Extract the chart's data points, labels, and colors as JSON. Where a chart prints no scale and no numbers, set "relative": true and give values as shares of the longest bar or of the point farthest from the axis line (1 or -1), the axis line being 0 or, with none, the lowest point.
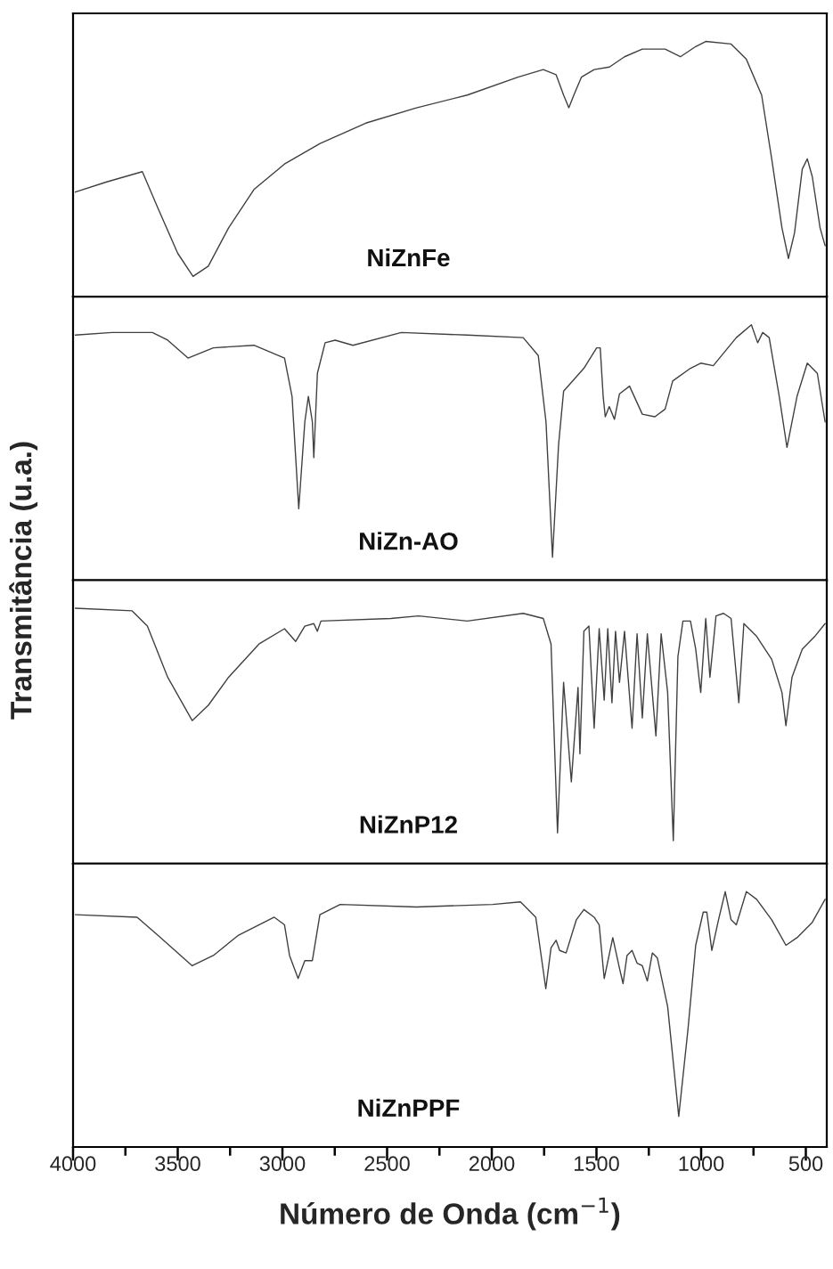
{
  "chart_data": [
    {
      "type": "line",
      "relative": true,
      "xlim": [
        4000,
        400
      ],
      "tick_labels": false,
      "ylabel": "Transmitância (u.a.)",
      "series": [
        {
          "name": "NiZnFe",
          "color": "#404040",
          "x": [
            3989,
            3839,
            3669,
            3596,
            3500,
            3427,
            3354,
            3257,
            3136,
            2990,
            2820,
            2602,
            2360,
            2117,
            1875,
            1754,
            1693,
            1657,
            1632,
            1608,
            1572,
            1511,
            1438,
            1366,
            1281,
            1172,
            1099,
            1026,
            978,
            857,
            784,
            711,
            663,
            614,
            583,
            554,
            517,
            493,
            469,
            432,
            408
          ],
          "values": [
            0.41,
            0.45,
            0.49,
            0.35,
            0.17,
            0.08,
            0.12,
            0.27,
            0.42,
            0.52,
            0.6,
            0.68,
            0.74,
            0.79,
            0.86,
            0.89,
            0.87,
            0.79,
            0.74,
            0.79,
            0.86,
            0.89,
            0.9,
            0.94,
            0.97,
            0.97,
            0.94,
            0.98,
            1.0,
            0.99,
            0.93,
            0.79,
            0.54,
            0.27,
            0.15,
            0.25,
            0.5,
            0.54,
            0.47,
            0.27,
            0.2
          ]
        }
      ]
    },
    {
      "type": "line",
      "relative": true,
      "xlim": [
        4000,
        400
      ],
      "tick_labels": false,
      "series": [
        {
          "name": "NiZn-AO",
          "color": "#404040",
          "x": [
            3989,
            3815,
            3621,
            3548,
            3451,
            3330,
            3136,
            2990,
            2954,
            2922,
            2893,
            2876,
            2857,
            2850,
            2833,
            2796,
            2748,
            2663,
            2432,
            2117,
            1850,
            1778,
            1741,
            1710,
            1681,
            1657,
            1560,
            1499,
            1482,
            1468,
            1458,
            1439,
            1414,
            1390,
            1342,
            1281,
            1221,
            1172,
            1136,
            1051,
            1002,
            942,
            832,
            760,
            730,
            706,
            675,
            627,
            590,
            542,
            493,
            445,
            408
          ],
          "values": [
            0.96,
            0.97,
            0.97,
            0.94,
            0.87,
            0.91,
            0.92,
            0.87,
            0.72,
            0.28,
            0.62,
            0.72,
            0.62,
            0.48,
            0.81,
            0.93,
            0.94,
            0.92,
            0.97,
            0.96,
            0.95,
            0.88,
            0.62,
            0.09,
            0.53,
            0.74,
            0.83,
            0.91,
            0.91,
            0.72,
            0.64,
            0.68,
            0.63,
            0.73,
            0.76,
            0.65,
            0.64,
            0.67,
            0.78,
            0.83,
            0.85,
            0.84,
            0.95,
            1.0,
            0.93,
            0.97,
            0.95,
            0.72,
            0.52,
            0.72,
            0.85,
            0.81,
            0.62
          ]
        }
      ]
    },
    {
      "type": "line",
      "relative": true,
      "xlim": [
        4000,
        400
      ],
      "tick_labels": false,
      "series": [
        {
          "name": "NiZnP12",
          "color": "#404040",
          "x": [
            3989,
            3718,
            3645,
            3548,
            3431,
            3354,
            3257,
            3112,
            2990,
            2937,
            2893,
            2850,
            2833,
            2816,
            2482,
            2349,
            2117,
            1850,
            1754,
            1717,
            1686,
            1657,
            1620,
            1588,
            1579,
            1560,
            1536,
            1511,
            1487,
            1463,
            1446,
            1426,
            1409,
            1390,
            1366,
            1330,
            1306,
            1281,
            1257,
            1216,
            1191,
            1160,
            1133,
            1111,
            1087,
            1051,
            1026,
            1002,
            978,
            958,
            929,
            893,
            857,
            820,
            796,
            735,
            663,
            614,
            595,
            566,
            517,
            457,
            408
          ],
          "values": [
            1.0,
            0.99,
            0.93,
            0.73,
            0.56,
            0.62,
            0.73,
            0.86,
            0.92,
            0.87,
            0.93,
            0.94,
            0.91,
            0.95,
            0.96,
            0.97,
            0.95,
            0.98,
            0.96,
            0.86,
            0.12,
            0.71,
            0.32,
            0.69,
            0.43,
            0.91,
            0.93,
            0.53,
            0.92,
            0.64,
            0.92,
            0.63,
            0.91,
            0.71,
            0.91,
            0.53,
            0.9,
            0.57,
            0.9,
            0.5,
            0.9,
            0.67,
            0.09,
            0.81,
            0.95,
            0.95,
            0.84,
            0.67,
            0.96,
            0.73,
            0.97,
            0.98,
            0.96,
            0.63,
            0.94,
            0.89,
            0.8,
            0.67,
            0.54,
            0.73,
            0.84,
            0.89,
            0.94
          ]
        }
      ]
    },
    {
      "type": "line",
      "relative": true,
      "xlim": [
        4000,
        400
      ],
      "tick_labels": "x",
      "xlabel": "Número de Onda (cm$^{−1}$)",
      "xticks": [
        4000,
        {
          "value": 3750,
          "label": null
        },
        3500,
        {
          "value": 3250,
          "label": null
        },
        3000,
        {
          "value": 2750,
          "label": null
        },
        2500,
        {
          "value": 2250,
          "label": null
        },
        2000,
        {
          "value": 1750,
          "label": null
        },
        1500,
        {
          "value": 1250,
          "label": null
        },
        1000,
        {
          "value": 750,
          "label": null
        },
        500
      ],
      "series": [
        {
          "name": "NiZnPPF",
          "color": "#404040",
          "x": [
            3989,
            3694,
            3596,
            3431,
            3330,
            3209,
            3039,
            2990,
            2966,
            2925,
            2893,
            2857,
            2821,
            2724,
            2360,
            1996,
            1863,
            1790,
            1742,
            1717,
            1693,
            1676,
            1645,
            1596,
            1560,
            1511,
            1487,
            1463,
            1422,
            1390,
            1373,
            1354,
            1330,
            1306,
            1281,
            1257,
            1233,
            1209,
            1160,
            1107,
            1063,
            1026,
            990,
            973,
            949,
            917,
            885,
            857,
            832,
            784,
            735,
            663,
            595,
            542,
            469,
            408
          ],
          "values": [
            0.91,
            0.9,
            0.83,
            0.71,
            0.75,
            0.83,
            0.9,
            0.87,
            0.75,
            0.66,
            0.73,
            0.73,
            0.91,
            0.95,
            0.94,
            0.95,
            0.96,
            0.9,
            0.62,
            0.78,
            0.81,
            0.77,
            0.76,
            0.89,
            0.93,
            0.9,
            0.87,
            0.66,
            0.82,
            0.7,
            0.64,
            0.75,
            0.77,
            0.72,
            0.71,
            0.65,
            0.76,
            0.74,
            0.55,
            0.12,
            0.46,
            0.79,
            0.92,
            0.92,
            0.77,
            0.89,
            1.0,
            0.89,
            0.87,
            1.0,
            0.97,
            0.89,
            0.79,
            0.82,
            0.88,
            0.97
          ]
        }
      ]
    }
  ]
}
